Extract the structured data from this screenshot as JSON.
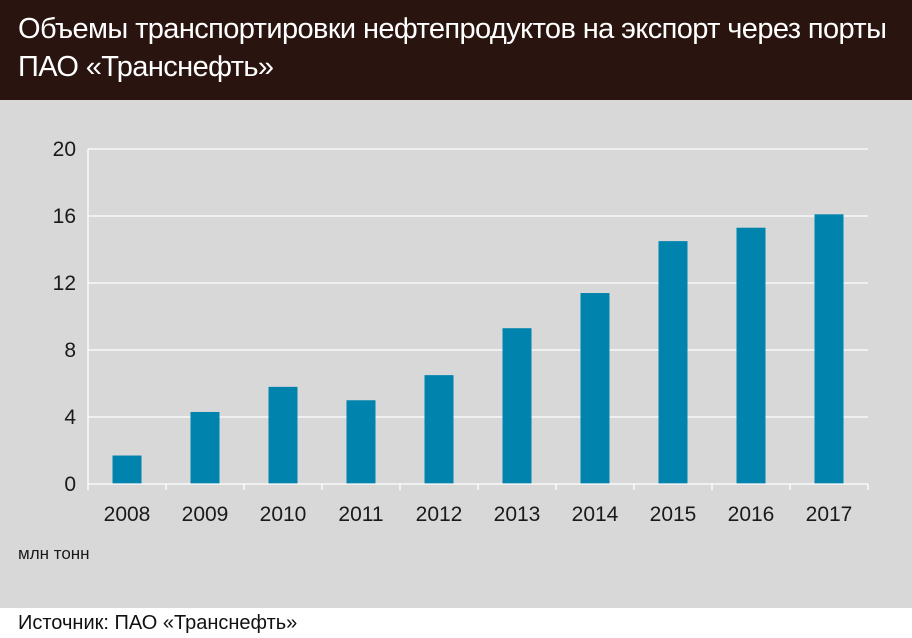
{
  "header": {
    "title_line1": "Объемы транспортировки нефтепродуктов на экспорт через порты",
    "title_line2": "ПАО «Транснефть»"
  },
  "source": "Источник: ПАО «Транснефть»",
  "colors": {
    "header_bg": "#2a1410",
    "panel_bg": "#d8d8d8",
    "bar": "#0083ad",
    "grid": "#ffffff"
  },
  "chart_data": {
    "type": "bar",
    "title": "Объемы транспортировки нефтепродуктов на экспорт через порты ПАО «Транснефть»",
    "categories": [
      "2008",
      "2009",
      "2010",
      "2011",
      "2012",
      "2013",
      "2014",
      "2015",
      "2016",
      "2017"
    ],
    "values": [
      1.7,
      4.3,
      5.8,
      5.0,
      6.5,
      9.3,
      11.4,
      14.5,
      15.3,
      16.1
    ],
    "yticks": [
      "0",
      "4",
      "8",
      "12",
      "16",
      "20"
    ],
    "ylim": [
      0,
      20
    ],
    "unit": "млн тонн",
    "grid": true,
    "legend": "none"
  }
}
